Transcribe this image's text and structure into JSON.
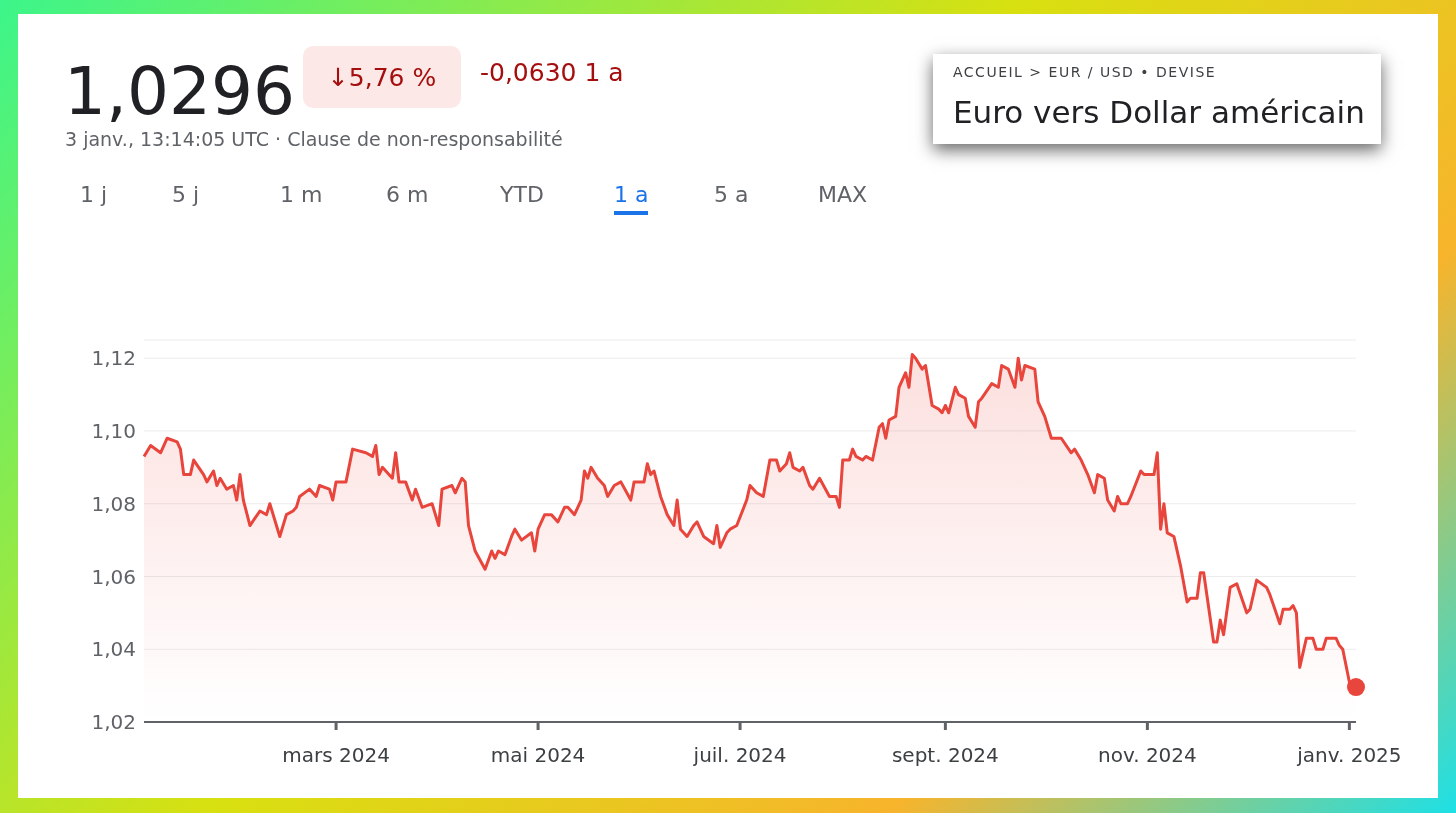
{
  "chart_data": {
    "type": "area",
    "title": "Euro vers Dollar américain",
    "subtitle": "ACCUEIL > EUR / USD • DEVISE",
    "annotations": [
      "1,0296",
      "↓5,76 %",
      "-0,0630 1 a",
      "3 janv., 13:14:05 UTC · Clause de non-responsabilité",
      "1 j",
      "5 j",
      "1 m",
      "6 m",
      "YTD",
      "1 a",
      "5 a",
      "MAX"
    ],
    "xlim": [
      "2024-01-03",
      "2025-01-03"
    ],
    "xticks": [
      {
        "value": "2024-03-01",
        "label": "mars 2024"
      },
      {
        "value": "2024-05-01",
        "label": "mai 2024"
      },
      {
        "value": "2024-07-01",
        "label": "juil. 2024"
      },
      {
        "value": "2024-09-01",
        "label": "sept. 2024"
      },
      {
        "value": "2024-11-01",
        "label": "nov. 2024"
      },
      {
        "value": "2025-01-01",
        "label": "janv. 2025"
      }
    ],
    "ylim": [
      1.02,
      1.125
    ],
    "yticks": [
      {
        "value": 1.02,
        "label": "1,02"
      },
      {
        "value": 1.04,
        "label": "1,04"
      },
      {
        "value": 1.06,
        "label": "1,06"
      },
      {
        "value": 1.08,
        "label": "1,08"
      },
      {
        "value": 1.1,
        "label": "1,10"
      },
      {
        "value": 1.12,
        "label": "1,12"
      }
    ],
    "grid": "y",
    "legend": false,
    "series": [
      {
        "color": "#e8453c",
        "x": [
          "2024-01-03",
          "2024-01-05",
          "2024-01-08",
          "2024-01-10",
          "2024-01-13",
          "2024-01-14",
          "2024-01-15",
          "2024-01-17",
          "2024-01-18",
          "2024-01-21",
          "2024-01-22",
          "2024-01-24",
          "2024-01-25",
          "2024-01-26",
          "2024-01-28",
          "2024-01-30",
          "2024-01-31",
          "2024-02-01",
          "2024-02-02",
          "2024-02-04",
          "2024-02-07",
          "2024-02-09",
          "2024-02-10",
          "2024-02-13",
          "2024-02-15",
          "2024-02-17",
          "2024-02-18",
          "2024-02-19",
          "2024-02-22",
          "2024-02-24",
          "2024-02-25",
          "2024-02-28",
          "2024-02-29",
          "2024-03-01",
          "2024-03-04",
          "2024-03-06",
          "2024-03-10",
          "2024-03-12",
          "2024-03-13",
          "2024-03-14",
          "2024-03-15",
          "2024-03-18",
          "2024-03-19",
          "2024-03-20",
          "2024-03-22",
          "2024-03-24",
          "2024-03-25",
          "2024-03-27",
          "2024-03-30",
          "2024-04-01",
          "2024-04-02",
          "2024-04-05",
          "2024-04-06",
          "2024-04-08",
          "2024-04-09",
          "2024-04-10",
          "2024-04-12",
          "2024-04-15",
          "2024-04-17",
          "2024-04-18",
          "2024-04-19",
          "2024-04-21",
          "2024-04-23",
          "2024-04-24",
          "2024-04-26",
          "2024-04-29",
          "2024-04-30",
          "2024-05-01",
          "2024-05-03",
          "2024-05-05",
          "2024-05-07",
          "2024-05-09",
          "2024-05-10",
          "2024-05-12",
          "2024-05-14",
          "2024-05-15",
          "2024-05-16",
          "2024-05-17",
          "2024-05-19",
          "2024-05-21",
          "2024-05-22",
          "2024-05-24",
          "2024-05-26",
          "2024-05-29",
          "2024-05-30",
          "2024-06-02",
          "2024-06-03",
          "2024-06-04",
          "2024-06-05",
          "2024-06-07",
          "2024-06-09",
          "2024-06-11",
          "2024-06-12",
          "2024-06-13",
          "2024-06-15",
          "2024-06-17",
          "2024-06-18",
          "2024-06-20",
          "2024-06-23",
          "2024-06-24",
          "2024-06-25",
          "2024-06-27",
          "2024-06-28",
          "2024-06-30",
          "2024-07-03",
          "2024-07-04",
          "2024-07-06",
          "2024-07-08",
          "2024-07-10",
          "2024-07-12",
          "2024-07-13",
          "2024-07-15",
          "2024-07-16",
          "2024-07-17",
          "2024-07-19",
          "2024-07-20",
          "2024-07-22",
          "2024-07-23",
          "2024-07-25",
          "2024-07-28",
          "2024-07-30",
          "2024-07-31",
          "2024-08-01",
          "2024-08-03",
          "2024-08-04",
          "2024-08-05",
          "2024-08-07",
          "2024-08-08",
          "2024-08-10",
          "2024-08-12",
          "2024-08-13",
          "2024-08-14",
          "2024-08-15",
          "2024-08-17",
          "2024-08-18",
          "2024-08-20",
          "2024-08-21",
          "2024-08-22",
          "2024-08-23",
          "2024-08-25",
          "2024-08-26",
          "2024-08-28",
          "2024-08-30",
          "2024-08-31",
          "2024-09-01",
          "2024-09-02",
          "2024-09-04",
          "2024-09-05",
          "2024-09-07",
          "2024-09-08",
          "2024-09-10",
          "2024-09-11",
          "2024-09-12",
          "2024-09-15",
          "2024-09-17",
          "2024-09-18",
          "2024-09-20",
          "2024-09-22",
          "2024-09-23",
          "2024-09-24",
          "2024-09-25",
          "2024-09-28",
          "2024-09-29",
          "2024-10-01",
          "2024-10-03",
          "2024-10-04",
          "2024-10-06",
          "2024-10-09",
          "2024-10-10",
          "2024-10-12",
          "2024-10-14",
          "2024-10-16",
          "2024-10-17",
          "2024-10-19",
          "2024-10-20",
          "2024-10-22",
          "2024-10-23",
          "2024-10-24",
          "2024-10-26",
          "2024-10-27",
          "2024-10-30",
          "2024-10-31",
          "2024-11-03",
          "2024-11-04",
          "2024-11-05",
          "2024-11-06",
          "2024-11-07",
          "2024-11-09",
          "2024-11-11",
          "2024-11-13",
          "2024-11-14",
          "2024-11-16",
          "2024-11-17",
          "2024-11-18",
          "2024-11-21",
          "2024-11-22",
          "2024-11-23",
          "2024-11-24",
          "2024-11-26",
          "2024-11-28",
          "2024-12-01",
          "2024-12-02",
          "2024-12-04",
          "2024-12-07",
          "2024-12-08",
          "2024-12-11",
          "2024-12-12",
          "2024-12-14",
          "2024-12-15",
          "2024-12-16",
          "2024-12-17",
          "2024-12-19",
          "2024-12-21",
          "2024-12-22",
          "2024-12-24",
          "2024-12-25",
          "2024-12-28",
          "2024-12-29",
          "2024-12-30",
          "2025-01-01",
          "2025-01-03"
        ],
        "values": [
          1.093,
          1.096,
          1.094,
          1.098,
          1.097,
          1.095,
          1.088,
          1.088,
          1.092,
          1.088,
          1.086,
          1.089,
          1.085,
          1.087,
          1.084,
          1.085,
          1.081,
          1.088,
          1.081,
          1.074,
          1.078,
          1.077,
          1.08,
          1.071,
          1.077,
          1.078,
          1.079,
          1.082,
          1.084,
          1.082,
          1.085,
          1.084,
          1.081,
          1.086,
          1.086,
          1.095,
          1.094,
          1.093,
          1.096,
          1.088,
          1.09,
          1.087,
          1.094,
          1.086,
          1.086,
          1.081,
          1.084,
          1.079,
          1.08,
          1.074,
          1.084,
          1.085,
          1.083,
          1.087,
          1.086,
          1.074,
          1.067,
          1.062,
          1.067,
          1.065,
          1.067,
          1.066,
          1.071,
          1.073,
          1.07,
          1.072,
          1.067,
          1.073,
          1.077,
          1.077,
          1.075,
          1.079,
          1.079,
          1.077,
          1.081,
          1.089,
          1.087,
          1.09,
          1.087,
          1.085,
          1.082,
          1.085,
          1.086,
          1.081,
          1.086,
          1.086,
          1.091,
          1.088,
          1.089,
          1.082,
          1.077,
          1.074,
          1.081,
          1.073,
          1.071,
          1.074,
          1.075,
          1.071,
          1.069,
          1.074,
          1.068,
          1.072,
          1.073,
          1.074,
          1.081,
          1.085,
          1.083,
          1.082,
          1.092,
          1.092,
          1.089,
          1.091,
          1.094,
          1.09,
          1.089,
          1.09,
          1.085,
          1.084,
          1.087,
          1.082,
          1.082,
          1.079,
          1.092,
          1.092,
          1.095,
          1.093,
          1.092,
          1.093,
          1.092,
          1.101,
          1.102,
          1.098,
          1.103,
          1.104,
          1.112,
          1.116,
          1.112,
          1.121,
          1.12,
          1.117,
          1.118,
          1.107,
          1.106,
          1.105,
          1.107,
          1.105,
          1.112,
          1.11,
          1.109,
          1.104,
          1.101,
          1.108,
          1.109,
          1.113,
          1.112,
          1.118,
          1.117,
          1.112,
          1.12,
          1.114,
          1.118,
          1.117,
          1.108,
          1.104,
          1.098,
          1.098,
          1.098,
          1.094,
          1.095,
          1.092,
          1.088,
          1.083,
          1.088,
          1.087,
          1.081,
          1.078,
          1.082,
          1.08,
          1.08,
          1.082,
          1.089,
          1.088,
          1.088,
          1.094,
          1.073,
          1.08,
          1.072,
          1.071,
          1.063,
          1.053,
          1.054,
          1.054,
          1.061,
          1.061,
          1.042,
          1.042,
          1.048,
          1.044,
          1.057,
          1.058,
          1.05,
          1.051,
          1.059,
          1.057,
          1.055,
          1.047,
          1.051,
          1.051,
          1.052,
          1.05,
          1.035,
          1.043,
          1.043,
          1.04,
          1.04,
          1.043,
          1.043,
          1.041,
          1.04,
          1.031,
          1.0296
        ]
      },
      {
        "type": "scatter",
        "marker": "circle",
        "color": "#e8453c",
        "x": [
          "2025-01-03"
        ],
        "values": [
          1.0296
        ]
      }
    ]
  }
}
